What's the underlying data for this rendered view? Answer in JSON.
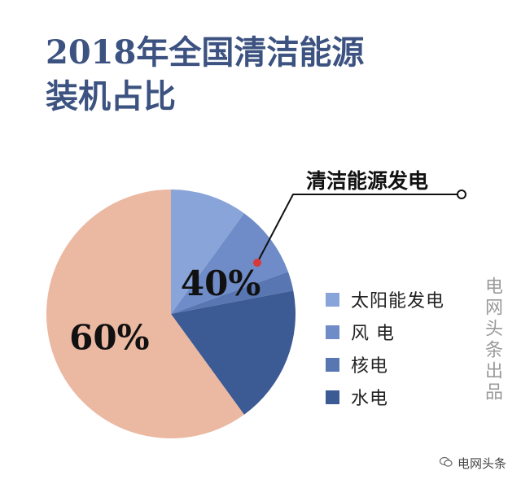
{
  "title": {
    "line1": "2018年全国清洁能源",
    "line2": "装机占比"
  },
  "callout": {
    "label": "清洁能源发电"
  },
  "credit": "电网头条出品",
  "watermark": {
    "text": "电网头条",
    "icon": "wechat-icon"
  },
  "colors": {
    "title": "#3c5280",
    "other": "#ebb8a2",
    "solar": "#89a4d8",
    "wind": "#6f8cc8",
    "nuclear": "#5776b2",
    "hydro": "#3c5a93"
  },
  "chart_data": {
    "type": "pie",
    "title": "2018年全国清洁能源装机占比",
    "slices": [
      {
        "key": "solar",
        "label": "太阳能发电",
        "value": 10,
        "color": "#89a4d8"
      },
      {
        "key": "wind",
        "label": "风 电",
        "value": 9.5,
        "color": "#6f8cc8"
      },
      {
        "key": "nuclear",
        "label": "核电",
        "value": 2.5,
        "color": "#5776b2"
      },
      {
        "key": "hydro",
        "label": "水电",
        "value": 18,
        "color": "#3c5a93"
      },
      {
        "key": "other",
        "label": "",
        "value": 60,
        "color": "#ebb8a2"
      }
    ],
    "group_labels": [
      {
        "text": "40%",
        "value": 40
      },
      {
        "text": "60%",
        "value": 60
      }
    ],
    "legend": [
      "太阳能发电",
      "风 电",
      "核电",
      "水电"
    ],
    "legend_position": "right",
    "start_angle_deg": 0,
    "direction": "clockwise"
  }
}
